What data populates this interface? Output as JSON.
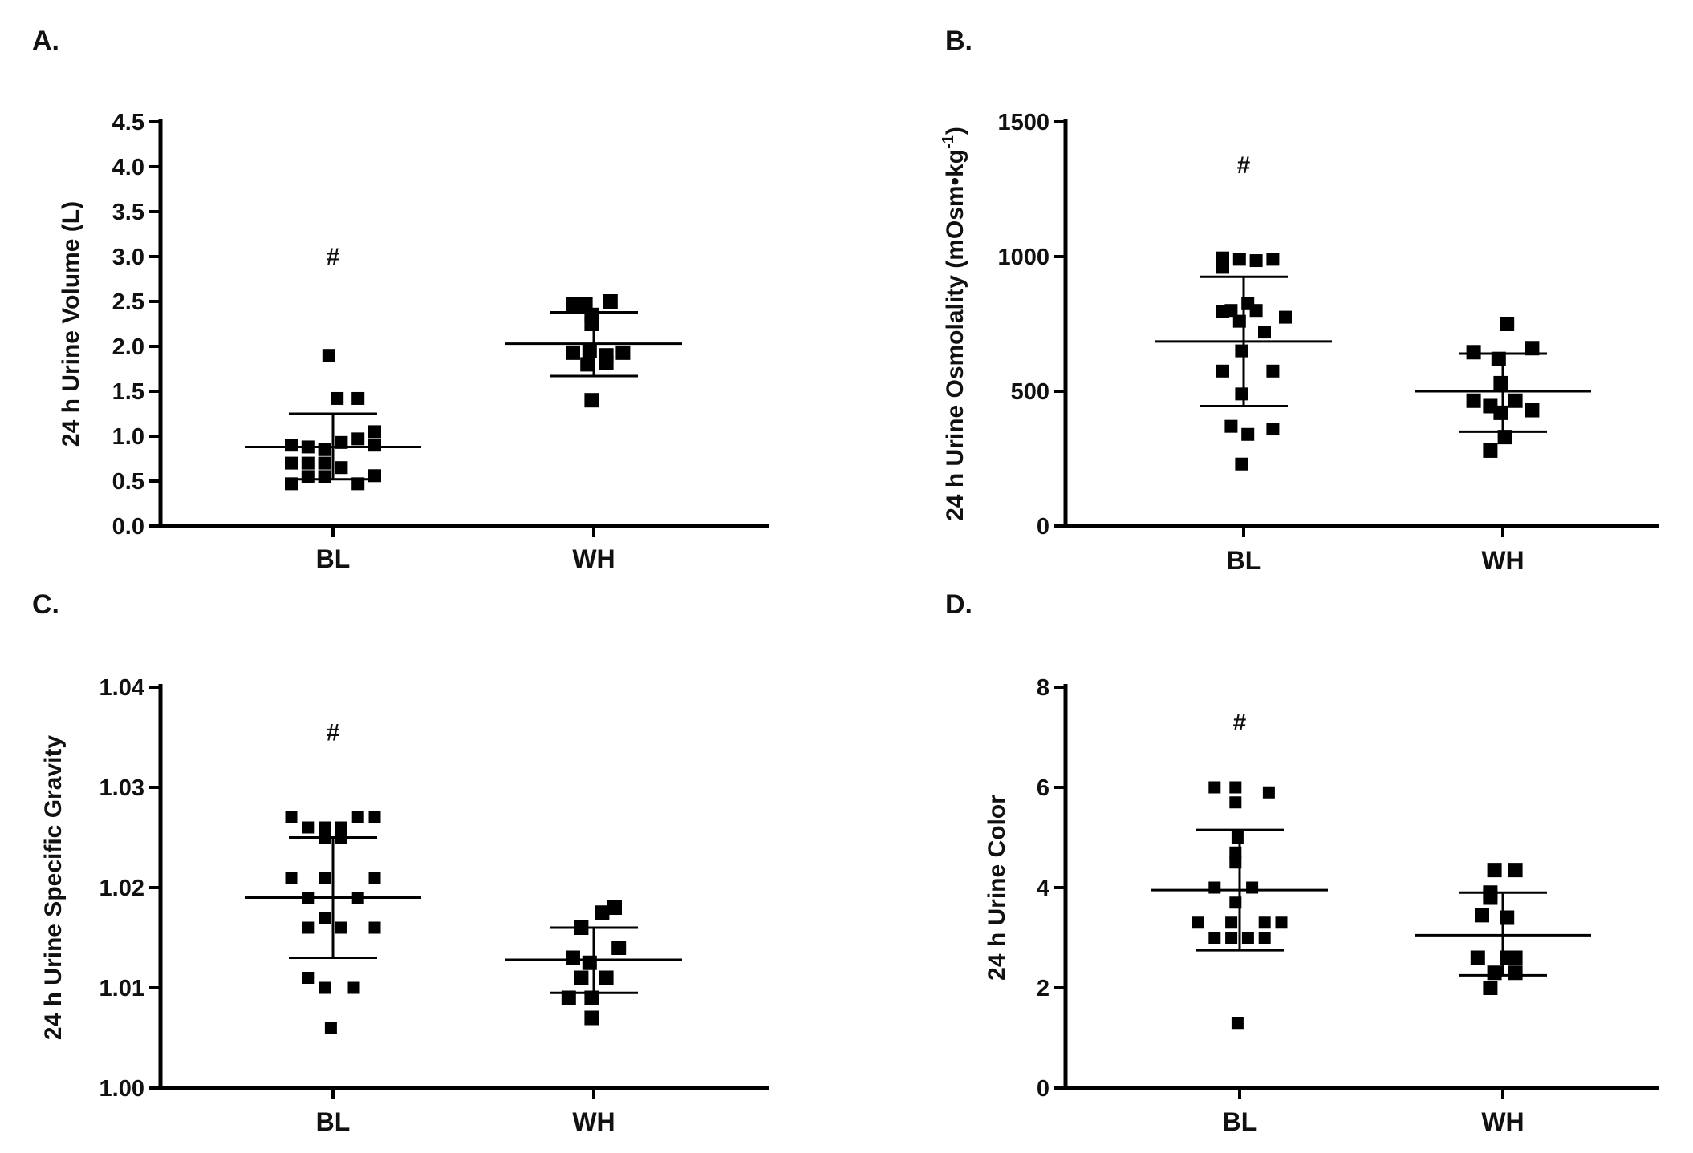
{
  "chart_data": [
    {
      "id": "A",
      "type": "scatter",
      "panel_label": "A.",
      "ylabel": "24 h Urine Volume (L)",
      "ylim": [
        0,
        4.5
      ],
      "yticks": [
        0.0,
        0.5,
        1.0,
        1.5,
        2.0,
        2.5,
        3.0,
        3.5,
        4.0,
        4.5
      ],
      "ytick_labels": [
        "0.0",
        "0.5",
        "1.0",
        "1.5",
        "2.0",
        "2.5",
        "3.0",
        "3.5",
        "4.0",
        "4.5"
      ],
      "categories": [
        "BL",
        "WH"
      ],
      "annotation": {
        "text": "#",
        "category": "BL",
        "y": 3.0
      },
      "groups": [
        {
          "category": "BL",
          "mean": 0.88,
          "sd_low": 0.52,
          "sd_high": 1.25,
          "points": [
            {
              "dx": -0.02,
              "y": 1.9
            },
            {
              "dx": 0.02,
              "y": 1.42
            },
            {
              "dx": 0.12,
              "y": 1.42
            },
            {
              "dx": 0.2,
              "y": 1.05
            },
            {
              "dx": 0.12,
              "y": 0.97
            },
            {
              "dx": 0.2,
              "y": 0.9
            },
            {
              "dx": -0.2,
              "y": 0.9
            },
            {
              "dx": -0.12,
              "y": 0.88
            },
            {
              "dx": -0.04,
              "y": 0.85
            },
            {
              "dx": 0.04,
              "y": 0.93
            },
            {
              "dx": -0.2,
              "y": 0.7
            },
            {
              "dx": -0.12,
              "y": 0.7
            },
            {
              "dx": -0.04,
              "y": 0.7
            },
            {
              "dx": 0.04,
              "y": 0.65
            },
            {
              "dx": -0.12,
              "y": 0.55
            },
            {
              "dx": -0.04,
              "y": 0.55
            },
            {
              "dx": 0.2,
              "y": 0.56
            },
            {
              "dx": -0.2,
              "y": 0.47
            },
            {
              "dx": 0.12,
              "y": 0.47
            }
          ]
        },
        {
          "category": "WH",
          "mean": 2.03,
          "sd_low": 1.67,
          "sd_high": 2.38,
          "points": [
            {
              "dx": -0.1,
              "y": 2.47
            },
            {
              "dx": -0.04,
              "y": 2.47
            },
            {
              "dx": 0.08,
              "y": 2.5
            },
            {
              "dx": -0.01,
              "y": 2.35
            },
            {
              "dx": -0.01,
              "y": 2.25
            },
            {
              "dx": -0.1,
              "y": 1.93
            },
            {
              "dx": -0.02,
              "y": 1.95
            },
            {
              "dx": 0.06,
              "y": 1.9
            },
            {
              "dx": 0.14,
              "y": 1.93
            },
            {
              "dx": -0.03,
              "y": 1.8
            },
            {
              "dx": 0.06,
              "y": 1.82
            },
            {
              "dx": -0.01,
              "y": 1.4
            }
          ]
        }
      ]
    },
    {
      "id": "B",
      "type": "scatter",
      "panel_label": "B.",
      "ylabel": "24 h Urine Osmolality (mOsm•kg",
      "ylabel_sup": "-1",
      "ylabel_close": ")",
      "ylim": [
        0,
        1500
      ],
      "yticks": [
        0,
        500,
        1000,
        1500
      ],
      "ytick_labels": [
        "0",
        "500",
        "1000",
        "1500"
      ],
      "categories": [
        "BL",
        "WH"
      ],
      "annotation": {
        "text": "#",
        "category": "BL",
        "y": 1340
      },
      "groups": [
        {
          "category": "BL",
          "mean": 685,
          "sd_low": 445,
          "sd_high": 925,
          "points": [
            {
              "dx": -0.1,
              "y": 995
            },
            {
              "dx": -0.02,
              "y": 990
            },
            {
              "dx": 0.14,
              "y": 990
            },
            {
              "dx": -0.1,
              "y": 960
            },
            {
              "dx": 0.06,
              "y": 985
            },
            {
              "dx": 0.02,
              "y": 825
            },
            {
              "dx": -0.06,
              "y": 800
            },
            {
              "dx": 0.06,
              "y": 800
            },
            {
              "dx": -0.1,
              "y": 795
            },
            {
              "dx": 0.2,
              "y": 775
            },
            {
              "dx": -0.02,
              "y": 760
            },
            {
              "dx": 0.1,
              "y": 720
            },
            {
              "dx": -0.01,
              "y": 650
            },
            {
              "dx": -0.1,
              "y": 575
            },
            {
              "dx": 0.14,
              "y": 575
            },
            {
              "dx": -0.01,
              "y": 490
            },
            {
              "dx": -0.06,
              "y": 370
            },
            {
              "dx": 0.14,
              "y": 360
            },
            {
              "dx": 0.02,
              "y": 340
            },
            {
              "dx": -0.01,
              "y": 230
            }
          ]
        },
        {
          "category": "WH",
          "mean": 500,
          "sd_low": 350,
          "sd_high": 640,
          "points": [
            {
              "dx": 0.02,
              "y": 750
            },
            {
              "dx": -0.14,
              "y": 645
            },
            {
              "dx": 0.14,
              "y": 660
            },
            {
              "dx": -0.02,
              "y": 620
            },
            {
              "dx": -0.01,
              "y": 530
            },
            {
              "dx": -0.14,
              "y": 465
            },
            {
              "dx": -0.06,
              "y": 445
            },
            {
              "dx": 0.06,
              "y": 465
            },
            {
              "dx": -0.01,
              "y": 420
            },
            {
              "dx": 0.14,
              "y": 430
            },
            {
              "dx": 0.01,
              "y": 330
            },
            {
              "dx": -0.06,
              "y": 280
            }
          ]
        }
      ]
    },
    {
      "id": "C",
      "type": "scatter",
      "panel_label": "C.",
      "ylabel": "24 h Urine Specific Gravity",
      "ylim": [
        1.0,
        1.04
      ],
      "yticks": [
        1.0,
        1.01,
        1.02,
        1.03,
        1.04
      ],
      "ytick_labels": [
        "1.00",
        "1.01",
        "1.02",
        "1.03",
        "1.04"
      ],
      "categories": [
        "BL",
        "WH"
      ],
      "annotation": {
        "text": "#",
        "category": "BL",
        "y": 1.0355
      },
      "groups": [
        {
          "category": "BL",
          "mean": 1.019,
          "sd_low": 1.013,
          "sd_high": 1.025,
          "points": [
            {
              "dx": -0.2,
              "y": 1.027
            },
            {
              "dx": 0.12,
              "y": 1.027
            },
            {
              "dx": 0.2,
              "y": 1.027
            },
            {
              "dx": -0.12,
              "y": 1.026
            },
            {
              "dx": -0.04,
              "y": 1.026
            },
            {
              "dx": 0.04,
              "y": 1.026
            },
            {
              "dx": -0.04,
              "y": 1.025
            },
            {
              "dx": 0.04,
              "y": 1.025
            },
            {
              "dx": -0.2,
              "y": 1.021
            },
            {
              "dx": -0.04,
              "y": 1.021
            },
            {
              "dx": 0.2,
              "y": 1.021
            },
            {
              "dx": -0.12,
              "y": 1.019
            },
            {
              "dx": 0.12,
              "y": 1.019
            },
            {
              "dx": -0.04,
              "y": 1.017
            },
            {
              "dx": -0.12,
              "y": 1.016
            },
            {
              "dx": 0.04,
              "y": 1.016
            },
            {
              "dx": 0.2,
              "y": 1.016
            },
            {
              "dx": -0.12,
              "y": 1.011
            },
            {
              "dx": -0.04,
              "y": 1.01
            },
            {
              "dx": 0.1,
              "y": 1.01
            },
            {
              "dx": -0.01,
              "y": 1.006
            }
          ]
        },
        {
          "category": "WH",
          "mean": 1.0128,
          "sd_low": 1.0095,
          "sd_high": 1.016,
          "points": [
            {
              "dx": 0.1,
              "y": 1.018
            },
            {
              "dx": 0.04,
              "y": 1.0175
            },
            {
              "dx": -0.06,
              "y": 1.016
            },
            {
              "dx": -0.1,
              "y": 1.013
            },
            {
              "dx": -0.02,
              "y": 1.0125
            },
            {
              "dx": 0.12,
              "y": 1.014
            },
            {
              "dx": -0.06,
              "y": 1.011
            },
            {
              "dx": 0.06,
              "y": 1.011
            },
            {
              "dx": -0.12,
              "y": 1.009
            },
            {
              "dx": -0.01,
              "y": 1.009
            },
            {
              "dx": -0.01,
              "y": 1.007
            }
          ]
        }
      ]
    },
    {
      "id": "D",
      "type": "scatter",
      "panel_label": "D.",
      "ylabel": "24 h Urine Color",
      "ylim": [
        0,
        8
      ],
      "yticks": [
        0,
        2,
        4,
        6,
        8
      ],
      "ytick_labels": [
        "0",
        "2",
        "4",
        "6",
        "8"
      ],
      "categories": [
        "BL",
        "WH"
      ],
      "annotation": {
        "text": "#",
        "category": "BL",
        "y": 7.3
      },
      "groups": [
        {
          "category": "BL",
          "mean": 3.95,
          "sd_low": 2.75,
          "sd_high": 5.15,
          "points": [
            {
              "dx": -0.12,
              "y": 6.0
            },
            {
              "dx": -0.02,
              "y": 6.0
            },
            {
              "dx": 0.14,
              "y": 5.9
            },
            {
              "dx": -0.02,
              "y": 5.7
            },
            {
              "dx": -0.01,
              "y": 5.0
            },
            {
              "dx": -0.02,
              "y": 4.7
            },
            {
              "dx": -0.02,
              "y": 4.5
            },
            {
              "dx": -0.12,
              "y": 4.0
            },
            {
              "dx": 0.06,
              "y": 4.0
            },
            {
              "dx": -0.02,
              "y": 3.7
            },
            {
              "dx": -0.2,
              "y": 3.3
            },
            {
              "dx": -0.04,
              "y": 3.3
            },
            {
              "dx": 0.12,
              "y": 3.3
            },
            {
              "dx": 0.2,
              "y": 3.3
            },
            {
              "dx": -0.12,
              "y": 3.0
            },
            {
              "dx": -0.04,
              "y": 3.0
            },
            {
              "dx": 0.04,
              "y": 3.0
            },
            {
              "dx": 0.12,
              "y": 3.0
            },
            {
              "dx": -0.01,
              "y": 1.3
            }
          ]
        },
        {
          "category": "WH",
          "mean": 3.05,
          "sd_low": 2.25,
          "sd_high": 3.9,
          "points": [
            {
              "dx": -0.04,
              "y": 4.35
            },
            {
              "dx": 0.06,
              "y": 4.35
            },
            {
              "dx": -0.06,
              "y": 3.9
            },
            {
              "dx": -0.06,
              "y": 3.8
            },
            {
              "dx": -0.1,
              "y": 3.45
            },
            {
              "dx": 0.02,
              "y": 3.4
            },
            {
              "dx": -0.12,
              "y": 2.6
            },
            {
              "dx": 0.02,
              "y": 2.6
            },
            {
              "dx": 0.06,
              "y": 2.6
            },
            {
              "dx": -0.04,
              "y": 2.3
            },
            {
              "dx": 0.06,
              "y": 2.3
            },
            {
              "dx": -0.06,
              "y": 2.0
            }
          ]
        }
      ]
    }
  ]
}
